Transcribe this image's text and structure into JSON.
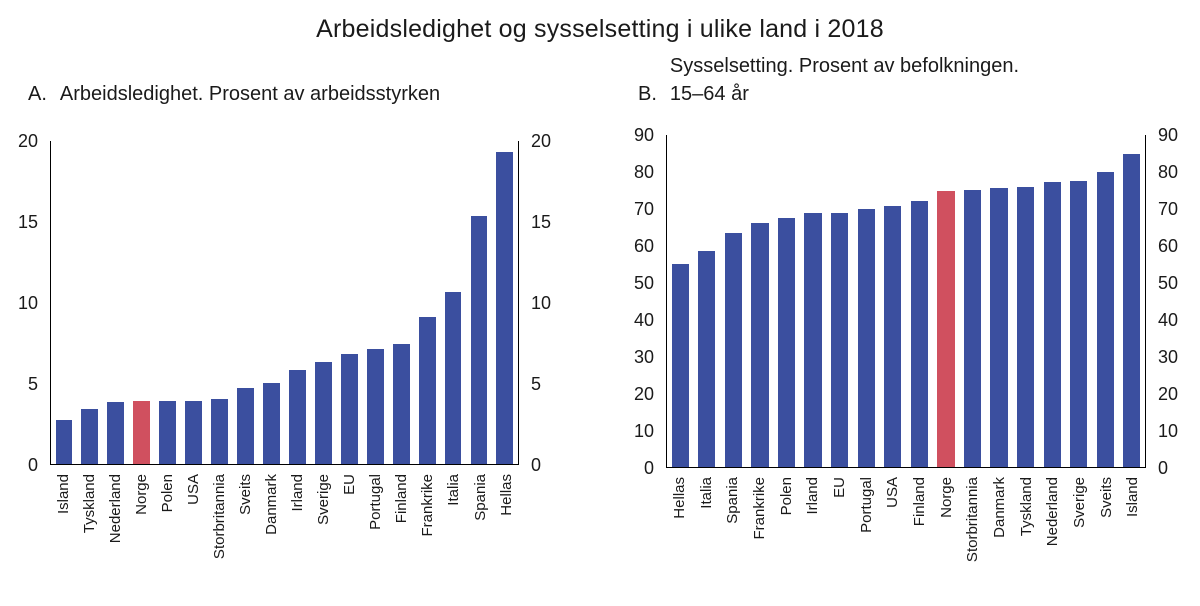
{
  "title": "Arbeidsledighet og sysselsetting i ulike land i 2018",
  "colors": {
    "bar": "#3B4F9F",
    "highlight": "#D0505F",
    "axis": "#000000",
    "text": "#1A1A1A"
  },
  "chart_data": [
    {
      "type": "bar",
      "panel_label": "A.",
      "title_lines": [
        "Arbeidsledighet. Prosent av arbeidsstyrken"
      ],
      "categories": [
        "Island",
        "Tyskland",
        "Nederland",
        "Norge",
        "Polen",
        "USA",
        "Storbritannia",
        "Sveits",
        "Danmark",
        "Irland",
        "Sverige",
        "EU",
        "Portugal",
        "Finland",
        "Frankrike",
        "Italia",
        "Spania",
        "Hellas"
      ],
      "values": [
        2.7,
        3.4,
        3.8,
        3.9,
        3.9,
        3.9,
        4.0,
        4.7,
        5.0,
        5.8,
        6.3,
        6.8,
        7.1,
        7.4,
        9.1,
        10.6,
        15.3,
        19.3
      ],
      "highlight_category": "Norge",
      "xlabel": "",
      "ylabel": "",
      "ylim": [
        0,
        20
      ],
      "yticks": [
        0,
        5,
        10,
        15,
        20
      ],
      "y_axis_sides": [
        "left",
        "right"
      ],
      "grid": false,
      "legend": null
    },
    {
      "type": "bar",
      "panel_label": "B.",
      "title_lines": [
        "Sysselsetting. Prosent av befolkningen.",
        "15–64 år"
      ],
      "categories": [
        "Hellas",
        "Italia",
        "Spania",
        "Frankrike",
        "Polen",
        "Irland",
        "EU",
        "Portugal",
        "USA",
        "Finland",
        "Norge",
        "Storbritannia",
        "Danmark",
        "Tyskland",
        "Nederland",
        "Sverige",
        "Sveits",
        "Island"
      ],
      "values": [
        54.9,
        58.5,
        63.4,
        66.1,
        67.4,
        68.6,
        68.8,
        69.7,
        70.7,
        72.1,
        74.8,
        75.0,
        75.4,
        75.9,
        77.2,
        77.5,
        79.9,
        84.7
      ],
      "highlight_category": "Norge",
      "xlabel": "",
      "ylabel": "",
      "ylim": [
        0,
        90
      ],
      "yticks": [
        0,
        10,
        20,
        30,
        40,
        50,
        60,
        70,
        80,
        90
      ],
      "y_axis_sides": [
        "left",
        "right"
      ],
      "grid": false,
      "legend": null
    }
  ]
}
